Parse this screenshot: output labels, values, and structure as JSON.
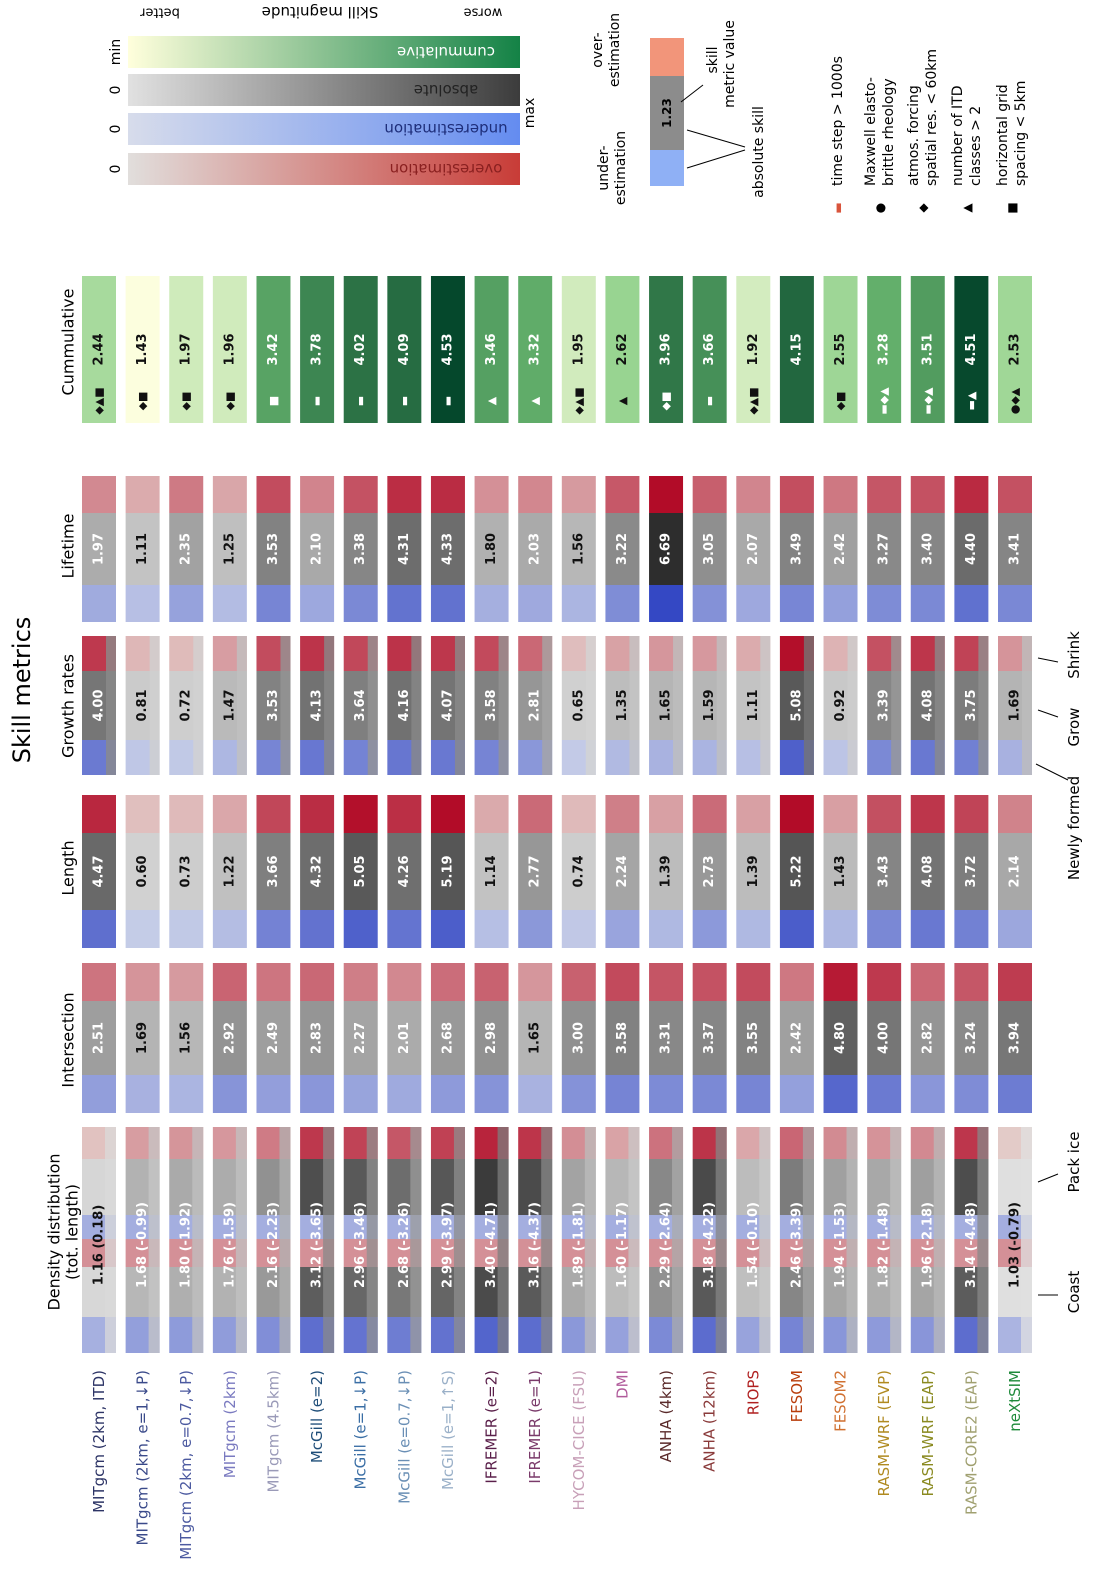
{
  "chart_data": {
    "type": "heatmap",
    "title": "Skill metrics",
    "metrics": [
      "Density distribution (tot. length)",
      "Intersection",
      "Length",
      "Growth rates",
      "Lifetime",
      "Cummulative"
    ],
    "models": [
      {
        "name": "MITgcm (2km, ITD)",
        "color": "#2d3466",
        "values": [
          "1.16 (0.18)",
          "2.51",
          "4.47",
          "4.00",
          "1.97",
          "2.44"
        ],
        "markers": "◆▲■"
      },
      {
        "name": "MITgcm (2km, e=1,↓P)",
        "color": "#3a4a8a",
        "values": [
          "1.68 (-0.99)",
          "1.69",
          "0.60",
          "0.81",
          "1.11",
          "1.43"
        ],
        "markers": "◆■"
      },
      {
        "name": "MITgcm (2km, e=0.7,↓P)",
        "color": "#4c5aa0",
        "values": [
          "1.80 (-1.92)",
          "1.56",
          "0.73",
          "0.72",
          "2.35",
          "1.97"
        ],
        "markers": "◆■"
      },
      {
        "name": "MITgcm (2km)",
        "color": "#7a7ac0",
        "values": [
          "1.76 (-1.59)",
          "2.92",
          "1.22",
          "1.47",
          "1.25",
          "1.96"
        ],
        "markers": "◆■"
      },
      {
        "name": "MITgcm (4.5km)",
        "color": "#9a9ab8",
        "values": [
          "2.16 (-2.23)",
          "2.49",
          "3.66",
          "3.53",
          "3.53",
          "3.42"
        ],
        "markers": "■"
      },
      {
        "name": "McGill (e=2)",
        "color": "#1f4e79",
        "values": [
          "3.12 (-3.65)",
          "2.83",
          "4.32",
          "4.13",
          "2.10",
          "3.78"
        ],
        "markers": "▬"
      },
      {
        "name": "McGill (e=1,↓P)",
        "color": "#3a6ea5",
        "values": [
          "2.96 (-3.46)",
          "2.27",
          "5.05",
          "3.64",
          "3.38",
          "4.02"
        ],
        "markers": "▬"
      },
      {
        "name": "McGill (e=0.7,↓P)",
        "color": "#6a8fb5",
        "values": [
          "2.68 (-3.26)",
          "2.01",
          "4.26",
          "4.16",
          "4.31",
          "4.09"
        ],
        "markers": "▬"
      },
      {
        "name": "McGill (e=1,↑S)",
        "color": "#9ab0c8",
        "values": [
          "2.99 (-3.97)",
          "2.68",
          "5.19",
          "4.07",
          "4.33",
          "4.53"
        ],
        "markers": "▬"
      },
      {
        "name": "IFREMER (e=2)",
        "color": "#5a1f4a",
        "values": [
          "3.40 (-4.71)",
          "2.98",
          "1.14",
          "3.58",
          "1.80",
          "3.46"
        ],
        "markers": "▲"
      },
      {
        "name": "IFREMER (e=1)",
        "color": "#7a3a6a",
        "values": [
          "3.16 (-4.37)",
          "1.65",
          "2.77",
          "2.81",
          "2.03",
          "3.32"
        ],
        "markers": "▲"
      },
      {
        "name": "HYCOM-CICE (FSU)",
        "color": "#c8a0b8",
        "values": [
          "1.89 (-1.81)",
          "3.00",
          "0.74",
          "0.65",
          "1.56",
          "1.95"
        ],
        "markers": "◆▲■"
      },
      {
        "name": "DMI",
        "color": "#b05a9a",
        "values": [
          "1.60 (-1.17)",
          "3.58",
          "2.24",
          "1.35",
          "3.22",
          "2.62"
        ],
        "markers": "▲"
      },
      {
        "name": "ANHA (4km)",
        "color": "#5a2a2a",
        "values": [
          "2.29 (-2.64)",
          "3.31",
          "1.39",
          "1.65",
          "6.69",
          "3.96"
        ],
        "markers": "◆■"
      },
      {
        "name": "ANHA (12km)",
        "color": "#8a3a3a",
        "values": [
          "3.18 (-4.22)",
          "3.37",
          "2.73",
          "1.59",
          "3.05",
          "3.66"
        ],
        "markers": "▬"
      },
      {
        "name": "RIOPS",
        "color": "#b02020",
        "values": [
          "1.54 (-0.10)",
          "3.55",
          "1.39",
          "1.11",
          "2.07",
          "1.92"
        ],
        "markers": "◆▲■"
      },
      {
        "name": "FESOM",
        "color": "#b83c0a",
        "values": [
          "2.46 (-3.39)",
          "2.42",
          "5.22",
          "5.08",
          "3.49",
          "4.15"
        ],
        "markers": ""
      },
      {
        "name": "FESOM2",
        "color": "#d07030",
        "values": [
          "1.94 (-1.53)",
          "4.80",
          "1.43",
          "0.92",
          "2.42",
          "2.55"
        ],
        "markers": "◆■"
      },
      {
        "name": "RASM-WRF (EVP)",
        "color": "#b08a20",
        "values": [
          "1.82 (-1.48)",
          "4.00",
          "3.43",
          "3.39",
          "3.27",
          "3.28"
        ],
        "markers": "▬◆▲"
      },
      {
        "name": "RASM-WRF (EAP)",
        "color": "#8a8a20",
        "values": [
          "1.96 (-2.18)",
          "2.82",
          "4.08",
          "4.08",
          "3.40",
          "3.51"
        ],
        "markers": "▬◆▲"
      },
      {
        "name": "RASM-CORE2 (EAP)",
        "color": "#a0a070",
        "values": [
          "3.14 (-4.48)",
          "3.24",
          "3.72",
          "3.75",
          "4.40",
          "4.51"
        ],
        "markers": "▬▲"
      },
      {
        "name": "neXtSIM",
        "color": "#1e8a3a",
        "values": [
          "1.03 (-0.79)",
          "3.94",
          "2.14",
          "1.69",
          "3.41",
          "2.53"
        ],
        "markers": "●◆▲"
      }
    ],
    "colorbars": {
      "labels": [
        "overestimation",
        "underestimation",
        "absolute",
        "cummulative"
      ],
      "left_ticks": [
        "0",
        "0",
        "0",
        "min"
      ],
      "max_label": "max",
      "top_labels": {
        "better": "better",
        "magnitude": "Skill magnitude",
        "worse": "worse"
      }
    },
    "schematic": {
      "under": "under-\nestimation",
      "over": "over-\nestimation",
      "value": "1.23",
      "skill_value": "skill\nmetric value",
      "absolute_skill": "absolute skill"
    },
    "marker_legend": [
      {
        "marker": "▬",
        "label": "time step > 1000s"
      },
      {
        "marker": "●",
        "label": "Maxwell elasto-\nbrittle rheology"
      },
      {
        "marker": "◆",
        "label": "atmos. forcing\nspatial res. < 60km"
      },
      {
        "marker": "▲",
        "label": "number of ITD\nclasses > 2"
      },
      {
        "marker": "■",
        "label": "horizontal grid\nspacing < 5km"
      }
    ],
    "bottom_annotations": {
      "coast": "Coast",
      "pack_ice": "Pack ice",
      "newly_formed": "Newly formed",
      "grow": "Grow",
      "shrink": "Shrink"
    }
  }
}
